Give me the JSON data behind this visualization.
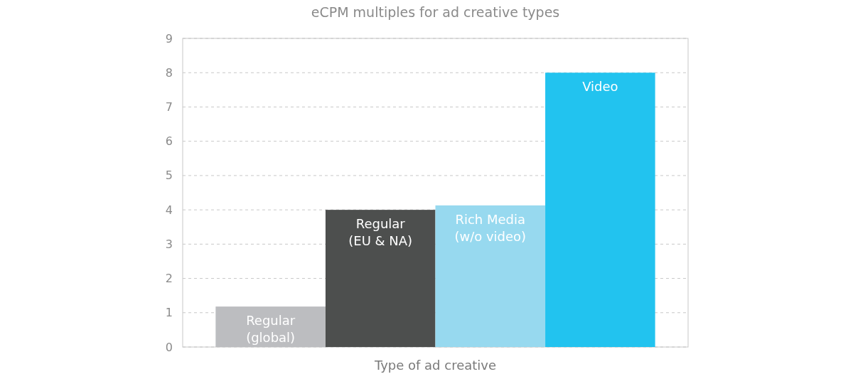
{
  "chart_data": {
    "type": "bar",
    "title": "eCPM multiples for ad creative types",
    "xlabel": "Type of ad creative",
    "categories": [
      "Regular\n(global)",
      "Regular\n(EU & NA)",
      "Rich Media\n(w/o video)",
      "Video"
    ],
    "values": [
      1.18,
      4,
      4.13,
      8
    ],
    "colors": [
      "#bcbdc0",
      "#4d4f4e",
      "#97d9ef",
      "#22c3ef"
    ],
    "ylim": [
      0,
      9
    ],
    "yticks": [
      0,
      1,
      2,
      3,
      4,
      5,
      6,
      7,
      8,
      9
    ],
    "grid": "y"
  }
}
